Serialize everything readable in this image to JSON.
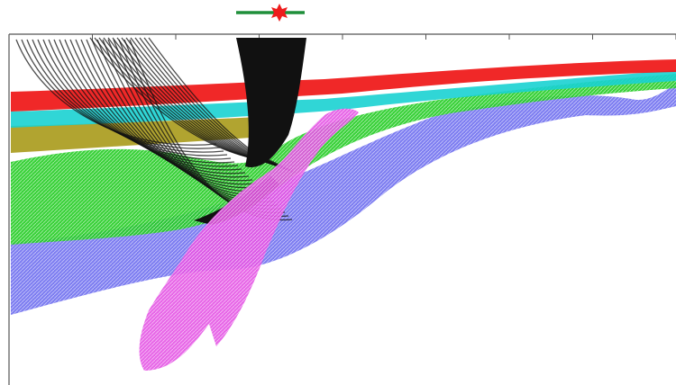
{
  "source_marker": {
    "bar_color": "#1f8f3a",
    "star_color": "#ee1c1c",
    "icon": "star-burst-icon"
  },
  "frame": {
    "border_color": "#555555",
    "tick_count": 8
  },
  "layers": [
    {
      "name": "layer-red",
      "color": "#ee1111"
    },
    {
      "name": "layer-cyan",
      "color": "#19d2d2"
    },
    {
      "name": "layer-green",
      "color": "#22cc22"
    },
    {
      "name": "layer-olive",
      "color": "#a89a1a"
    },
    {
      "name": "layer-blue",
      "color": "#6f6ff0"
    },
    {
      "name": "layer-magenta",
      "color": "#e455e4"
    }
  ],
  "rays": {
    "color": "#111111"
  }
}
